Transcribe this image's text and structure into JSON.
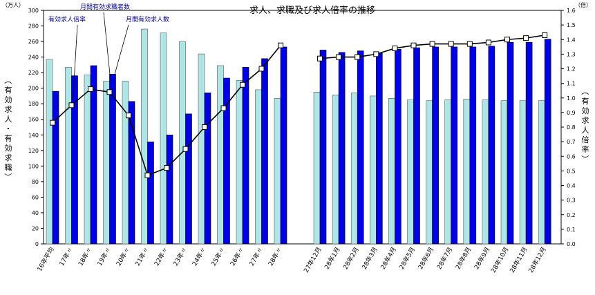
{
  "chart_data": {
    "type": "bar",
    "title": "求人、求職及び求人倍率の推移",
    "left_unit": "（万人）",
    "right_unit": "（倍）",
    "left_axis_title": "（有効求人・有効求職）",
    "right_axis_title": "（有効求人倍率）",
    "left_ylim": [
      0,
      300
    ],
    "left_ticks": [
      0,
      20,
      40,
      60,
      80,
      100,
      120,
      140,
      160,
      180,
      200,
      220,
      240,
      260,
      280,
      300
    ],
    "right_ylim": [
      0,
      1.6
    ],
    "right_ticks": [
      "0.0",
      "0.1",
      "0.2",
      "0.3",
      "0.4",
      "0.5",
      "0.6",
      "0.7",
      "0.8",
      "0.9",
      "1.0",
      "1.1",
      "1.2",
      "1.3",
      "1.4",
      "1.5",
      "1.6"
    ],
    "annual_categories": [
      "16年平均",
      "17年〃",
      "18年〃",
      "19年〃",
      "20年〃",
      "21年〃",
      "22年〃",
      "23年〃",
      "24年〃",
      "25年〃",
      "26年〃",
      "27年〃",
      "28年〃"
    ],
    "monthly_categories": [
      "27年12月",
      "28年1月",
      "28年2月",
      "28年3月",
      "28年4月",
      "28年5月",
      "28年6月",
      "28年7月",
      "28年8月",
      "28年9月",
      "28年10月",
      "28年11月",
      "28年12月"
    ],
    "series": [
      {
        "name": "月間有効求職者数",
        "axis": "left",
        "color": "#aee6e6",
        "annual": [
          237,
          227,
          217,
          209,
          209,
          276,
          271,
          260,
          244,
          229,
          210,
          198,
          187
        ],
        "monthly": [
          195,
          191,
          194,
          190,
          187,
          185,
          184,
          185,
          186,
          185,
          184,
          184,
          184
        ]
      },
      {
        "name": "月間有効求人数",
        "axis": "left",
        "color": "#0000e6",
        "annual": [
          196,
          216,
          229,
          218,
          183,
          131,
          140,
          167,
          194,
          213,
          227,
          238,
          253
        ],
        "monthly": [
          249,
          246,
          248,
          245,
          250,
          252,
          253,
          253,
          253,
          254,
          259,
          259,
          263
        ]
      },
      {
        "name": "有効求人倍率",
        "axis": "right",
        "type": "line",
        "color": "#000000",
        "annual": [
          0.83,
          0.95,
          1.06,
          1.04,
          0.88,
          0.47,
          0.52,
          0.65,
          0.8,
          0.93,
          1.09,
          1.2,
          1.36
        ],
        "monthly": [
          1.27,
          1.28,
          1.28,
          1.3,
          1.34,
          1.36,
          1.37,
          1.37,
          1.37,
          1.38,
          1.4,
          1.41,
          1.43
        ]
      }
    ],
    "annotations": [
      {
        "text": "有効求人倍率",
        "series": 2
      },
      {
        "text": "月間有効求職者数",
        "series": 0
      },
      {
        "text": "月間有効求人数",
        "series": 1
      }
    ]
  }
}
